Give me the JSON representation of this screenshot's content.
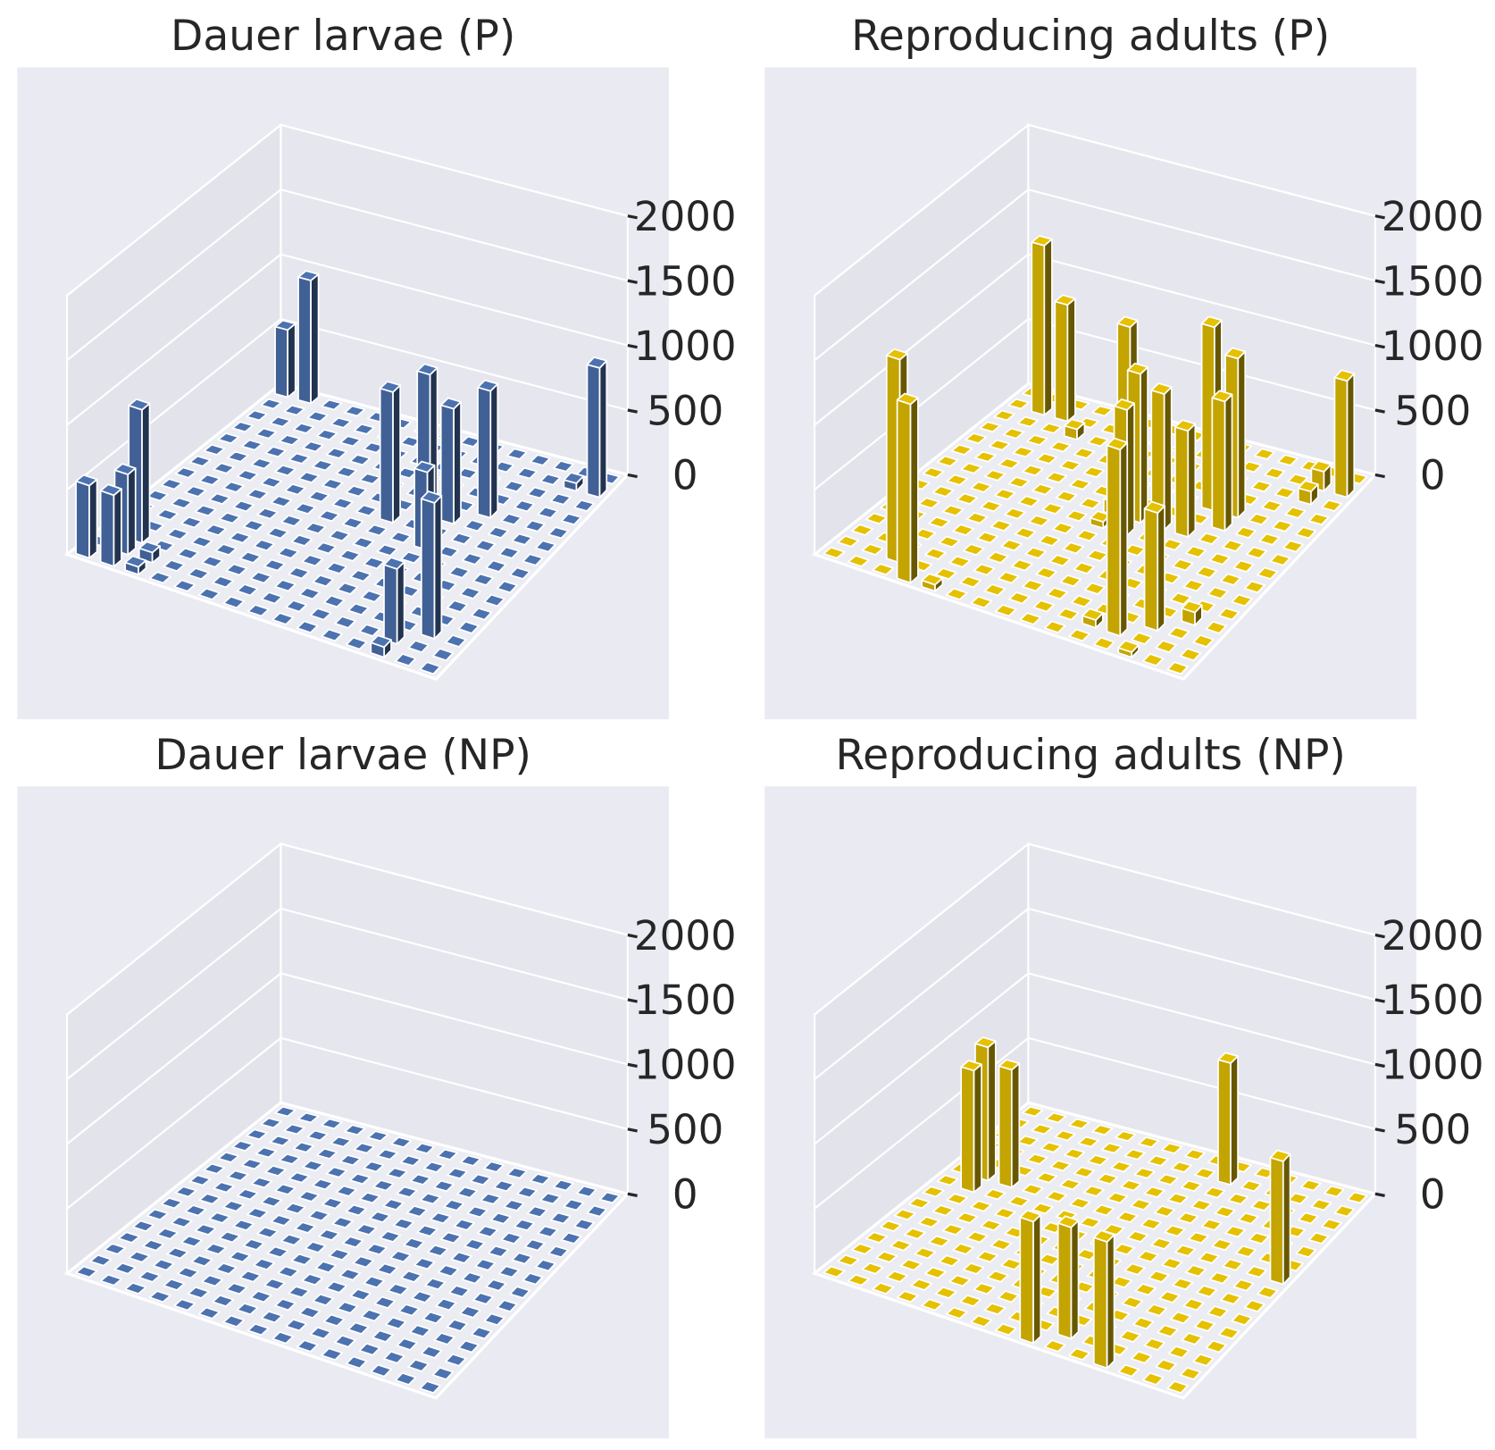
{
  "chart_data": [
    {
      "type": "bar3d",
      "title": "Dauer larvae (P)",
      "color": "#4c72b0",
      "zlim": [
        0,
        2000
      ],
      "zticks": [
        0,
        500,
        1000,
        1500,
        2000
      ],
      "values": [
        [
          520,
          950,
          0,
          0,
          0,
          0,
          0,
          0,
          0,
          0,
          0,
          0,
          0,
          0,
          0
        ],
        [
          0,
          0,
          0,
          0,
          0,
          0,
          0,
          0,
          0,
          0,
          0,
          0,
          0,
          60,
          1000
        ],
        [
          0,
          0,
          0,
          0,
          0,
          0,
          0,
          0,
          0,
          0,
          0,
          0,
          0,
          0,
          0
        ],
        [
          0,
          0,
          0,
          0,
          0,
          0,
          0,
          0,
          0,
          0,
          0,
          0,
          0,
          0,
          0
        ],
        [
          0,
          0,
          0,
          0,
          0,
          0,
          0,
          0,
          0,
          0,
          0,
          980,
          0,
          0,
          0
        ],
        [
          0,
          0,
          0,
          0,
          0,
          0,
          0,
          0,
          0,
          1100,
          890,
          0,
          0,
          0,
          0
        ],
        [
          0,
          0,
          0,
          0,
          0,
          0,
          0,
          0,
          1010,
          0,
          0,
          0,
          0,
          0,
          0
        ],
        [
          0,
          0,
          0,
          0,
          0,
          0,
          0,
          0,
          0,
          0,
          600,
          0,
          0,
          0,
          0
        ],
        [
          0,
          0,
          0,
          0,
          0,
          0,
          0,
          0,
          0,
          0,
          0,
          0,
          0,
          0,
          0
        ],
        [
          0,
          0,
          0,
          0,
          0,
          0,
          0,
          0,
          0,
          0,
          0,
          0,
          0,
          0,
          0
        ],
        [
          0,
          0,
          0,
          0,
          0,
          0,
          0,
          0,
          0,
          0,
          0,
          0,
          0,
          0,
          0
        ],
        [
          0,
          0,
          0,
          0,
          0,
          0,
          0,
          0,
          0,
          0,
          0,
          0,
          0,
          0,
          0
        ],
        [
          0,
          1030,
          0,
          0,
          0,
          0,
          0,
          0,
          0,
          0,
          0,
          0,
          0,
          1050,
          0
        ],
        [
          0,
          620,
          80,
          0,
          0,
          0,
          0,
          0,
          0,
          0,
          0,
          0,
          580,
          0,
          0
        ],
        [
          560,
          550,
          60,
          0,
          0,
          0,
          0,
          0,
          0,
          0,
          0,
          0,
          80,
          0,
          0
        ]
      ]
    },
    {
      "type": "bar3d",
      "title": "Reproducing adults (P)",
      "color": "#e5c100",
      "zlim": [
        0,
        2000
      ],
      "zticks": [
        0,
        500,
        1000,
        1500,
        2000
      ],
      "values": [
        [
          0,
          0,
          0,
          0,
          0,
          0,
          0,
          0,
          0,
          0,
          0,
          0,
          0,
          0,
          0
        ],
        [
          0,
          1310,
          900,
          0,
          0,
          0,
          0,
          0,
          0,
          0,
          0,
          0,
          0,
          150,
          900
        ],
        [
          0,
          0,
          0,
          80,
          0,
          0,
          0,
          0,
          0,
          0,
          0,
          0,
          0,
          100,
          0
        ],
        [
          0,
          0,
          0,
          0,
          0,
          0,
          0,
          0,
          0,
          0,
          0,
          0,
          0,
          0,
          0
        ],
        [
          0,
          0,
          0,
          0,
          0,
          0,
          0,
          0,
          0,
          0,
          1420,
          1230,
          0,
          0,
          0
        ],
        [
          0,
          0,
          0,
          0,
          0,
          0,
          0,
          1360,
          0,
          0,
          0,
          1000,
          0,
          0,
          0
        ],
        [
          0,
          0,
          0,
          0,
          0,
          0,
          0,
          100,
          1150,
          1050,
          820,
          0,
          0,
          0,
          0
        ],
        [
          0,
          0,
          0,
          0,
          0,
          0,
          0,
          50,
          970,
          0,
          0,
          0,
          0,
          0,
          0
        ],
        [
          0,
          0,
          0,
          0,
          0,
          0,
          0,
          0,
          0,
          0,
          0,
          0,
          0,
          0,
          0
        ],
        [
          0,
          0,
          0,
          0,
          0,
          0,
          0,
          0,
          0,
          0,
          0,
          0,
          0,
          0,
          0
        ],
        [
          0,
          0,
          0,
          0,
          0,
          0,
          0,
          0,
          0,
          0,
          0,
          0,
          0,
          0,
          0
        ],
        [
          0,
          0,
          0,
          0,
          0,
          0,
          0,
          0,
          0,
          0,
          0,
          0,
          0,
          100,
          0
        ],
        [
          0,
          0,
          0,
          0,
          0,
          0,
          0,
          0,
          0,
          0,
          0,
          0,
          910,
          0,
          0
        ],
        [
          0,
          0,
          1570,
          0,
          0,
          0,
          0,
          0,
          0,
          0,
          60,
          1440,
          0,
          0,
          0
        ],
        [
          0,
          0,
          0,
          1380,
          50,
          0,
          0,
          0,
          0,
          0,
          0,
          0,
          40,
          0,
          0
        ]
      ]
    },
    {
      "type": "bar3d",
      "title": "Dauer larvae (NP)",
      "color": "#4c72b0",
      "zlim": [
        0,
        2000
      ],
      "zticks": [
        0,
        500,
        1000,
        1500,
        2000
      ],
      "values": [
        [
          0,
          0,
          0,
          0,
          0,
          0,
          0,
          0,
          0,
          0,
          0,
          0,
          0,
          0,
          0
        ],
        [
          0,
          0,
          0,
          0,
          0,
          0,
          0,
          0,
          0,
          0,
          0,
          0,
          0,
          0,
          0
        ],
        [
          0,
          0,
          0,
          0,
          0,
          0,
          0,
          0,
          0,
          0,
          0,
          0,
          0,
          0,
          0
        ],
        [
          0,
          0,
          0,
          0,
          0,
          0,
          0,
          0,
          0,
          0,
          0,
          0,
          0,
          0,
          0
        ],
        [
          0,
          0,
          0,
          0,
          0,
          0,
          0,
          0,
          0,
          0,
          0,
          0,
          0,
          0,
          0
        ],
        [
          0,
          0,
          0,
          0,
          0,
          0,
          0,
          0,
          0,
          0,
          0,
          0,
          0,
          0,
          0
        ],
        [
          0,
          0,
          0,
          0,
          0,
          0,
          0,
          0,
          0,
          0,
          0,
          0,
          0,
          0,
          0
        ],
        [
          0,
          0,
          0,
          0,
          0,
          0,
          0,
          0,
          0,
          0,
          0,
          0,
          0,
          0,
          0
        ],
        [
          0,
          0,
          0,
          0,
          0,
          0,
          0,
          0,
          0,
          0,
          0,
          0,
          0,
          0,
          0
        ],
        [
          0,
          0,
          0,
          0,
          0,
          0,
          0,
          0,
          0,
          0,
          0,
          0,
          0,
          0,
          0
        ],
        [
          0,
          0,
          0,
          0,
          0,
          0,
          0,
          0,
          0,
          0,
          0,
          0,
          0,
          0,
          0
        ],
        [
          0,
          0,
          0,
          0,
          0,
          0,
          0,
          0,
          0,
          0,
          0,
          0,
          0,
          0,
          0
        ],
        [
          0,
          0,
          0,
          0,
          0,
          0,
          0,
          0,
          0,
          0,
          0,
          0,
          0,
          0,
          0
        ],
        [
          0,
          0,
          0,
          0,
          0,
          0,
          0,
          0,
          0,
          0,
          0,
          0,
          0,
          0,
          0
        ],
        [
          0,
          0,
          0,
          0,
          0,
          0,
          0,
          0,
          0,
          0,
          0,
          0,
          0,
          0,
          0
        ]
      ]
    },
    {
      "type": "bar3d",
      "title": "Reproducing adults (NP)",
      "color": "#e5c100",
      "zlim": [
        0,
        2000
      ],
      "zticks": [
        0,
        500,
        1000,
        1500,
        2000
      ],
      "values": [
        [
          0,
          0,
          0,
          0,
          0,
          0,
          0,
          0,
          0,
          0,
          0,
          0,
          0,
          0,
          0
        ],
        [
          0,
          0,
          0,
          0,
          0,
          0,
          0,
          0,
          0,
          940,
          0,
          0,
          0,
          0,
          0
        ],
        [
          0,
          0,
          0,
          0,
          0,
          0,
          0,
          0,
          0,
          0,
          0,
          0,
          0,
          0,
          0
        ],
        [
          0,
          0,
          0,
          0,
          0,
          0,
          0,
          0,
          0,
          0,
          0,
          0,
          0,
          0,
          0
        ],
        [
          0,
          0,
          0,
          0,
          0,
          0,
          0,
          0,
          0,
          0,
          0,
          0,
          0,
          0,
          0
        ],
        [
          0,
          1030,
          910,
          0,
          0,
          0,
          0,
          0,
          0,
          0,
          0,
          0,
          0,
          0,
          0
        ],
        [
          0,
          940,
          0,
          0,
          0,
          0,
          0,
          0,
          0,
          0,
          0,
          0,
          0,
          0,
          950
        ],
        [
          0,
          0,
          0,
          0,
          0,
          0,
          0,
          0,
          0,
          0,
          0,
          0,
          0,
          0,
          0
        ],
        [
          0,
          0,
          0,
          0,
          0,
          0,
          0,
          0,
          0,
          0,
          0,
          0,
          0,
          0,
          0
        ],
        [
          0,
          0,
          0,
          0,
          0,
          0,
          0,
          0,
          0,
          0,
          0,
          0,
          0,
          0,
          0
        ],
        [
          0,
          0,
          0,
          0,
          0,
          0,
          0,
          0,
          0,
          0,
          0,
          0,
          0,
          0,
          0
        ],
        [
          0,
          0,
          0,
          0,
          0,
          0,
          0,
          0,
          0,
          0,
          0,
          0,
          0,
          0,
          0
        ],
        [
          0,
          0,
          0,
          0,
          0,
          0,
          0,
          0,
          0,
          0,
          0,
          0,
          0,
          0,
          0
        ],
        [
          0,
          0,
          0,
          0,
          0,
          0,
          0,
          0,
          0,
          860,
          0,
          0,
          0,
          0,
          0
        ],
        [
          0,
          0,
          0,
          0,
          0,
          0,
          0,
          0,
          940,
          0,
          0,
          975,
          0,
          0,
          0
        ]
      ]
    }
  ]
}
